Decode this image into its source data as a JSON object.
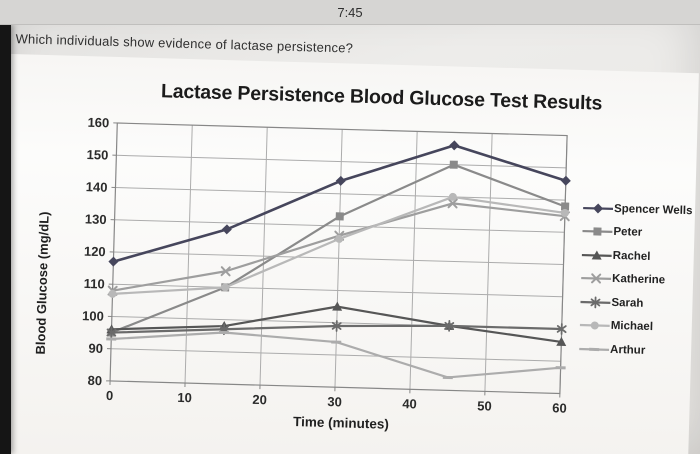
{
  "status_bar": {
    "time": "7:45"
  },
  "question": "Which individuals show evidence of lactase persistence?",
  "chart_data": {
    "type": "line",
    "title": "Lactase Persistence Blood Glucose Test Results",
    "xlabel": "Time (minutes)",
    "ylabel": "Blood Glucose (mg/dL)",
    "x": [
      0,
      15,
      30,
      45,
      60
    ],
    "xticks": [
      0,
      10,
      20,
      30,
      40,
      50,
      60
    ],
    "ylim": [
      80,
      160
    ],
    "ytick_step": 10,
    "grid": true,
    "legend_position": "right",
    "series": [
      {
        "name": "Spencer Wells",
        "marker": "diamond",
        "color": "#46465c",
        "values": [
          117,
          128,
          144,
          156,
          146
        ]
      },
      {
        "name": "Peter",
        "marker": "square",
        "color": "#8a8a8a",
        "values": [
          95,
          110,
          133,
          150,
          138
        ]
      },
      {
        "name": "Rachel",
        "marker": "triangle",
        "color": "#565656",
        "values": [
          96,
          98,
          105,
          100,
          96
        ]
      },
      {
        "name": "Katherine",
        "marker": "x",
        "color": "#9e9e9e",
        "values": [
          108,
          115,
          127,
          138,
          135
        ]
      },
      {
        "name": "Sarah",
        "marker": "asterisk",
        "color": "#6b6b6b",
        "values": [
          95,
          97,
          99,
          100,
          100
        ]
      },
      {
        "name": "Michael",
        "marker": "circle",
        "color": "#b8b8b8",
        "values": [
          107,
          110,
          126,
          140,
          136
        ]
      },
      {
        "name": "Arthur",
        "marker": "dash",
        "color": "#acacac",
        "values": [
          93,
          96,
          94,
          84,
          88
        ]
      }
    ]
  }
}
